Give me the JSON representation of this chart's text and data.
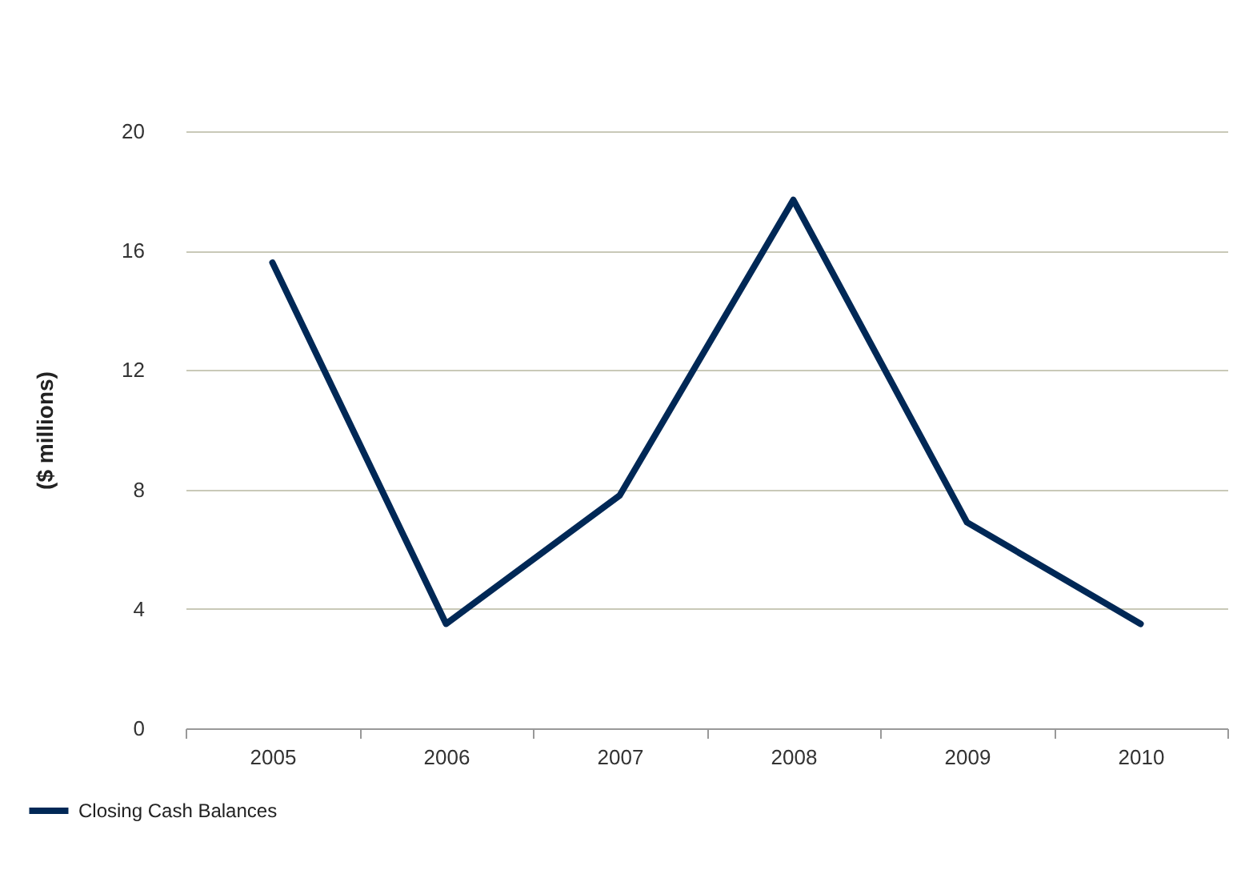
{
  "chart_data": {
    "type": "line",
    "ylabel": "($ millions)",
    "categories": [
      "2005",
      "2006",
      "2007",
      "2008",
      "2009",
      "2010"
    ],
    "series": [
      {
        "name": "Closing Cash Balances",
        "color": "#002856",
        "values": [
          15.6,
          3.5,
          7.8,
          17.7,
          6.9,
          3.5
        ]
      }
    ],
    "ylim": [
      0,
      20
    ],
    "yticks": [
      0,
      4,
      8,
      12,
      16,
      20
    ],
    "grid": "y",
    "legend": "bottom left",
    "marker": "none",
    "line_style": "solid"
  }
}
